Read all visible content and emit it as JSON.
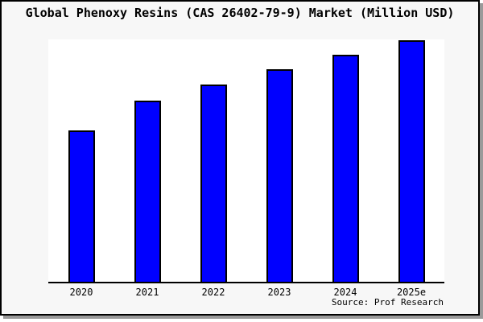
{
  "window": {
    "background": "#f7f7f7",
    "border_color": "#000000",
    "shadow_color": "#9a9a9a"
  },
  "chart_data": {
    "type": "bar",
    "title": "Global Phenoxy Resins (CAS 26402-79-9) Market (Million USD)",
    "categories": [
      "2020",
      "2021",
      "2022",
      "2023",
      "2024",
      "2025e"
    ],
    "values": [
      188,
      225,
      245,
      264,
      282,
      300
    ],
    "y_axis": "unlabeled (no ticks or gridlines shown; values are relative bar heights in px)",
    "ylim": [
      0,
      301
    ],
    "grid": false,
    "legend": false,
    "bar_color": "#0000ff",
    "bar_border_color": "#000000",
    "plot_background": "#ffffff",
    "axis_color": "#000000",
    "source_label": "Source: Prof Research"
  }
}
